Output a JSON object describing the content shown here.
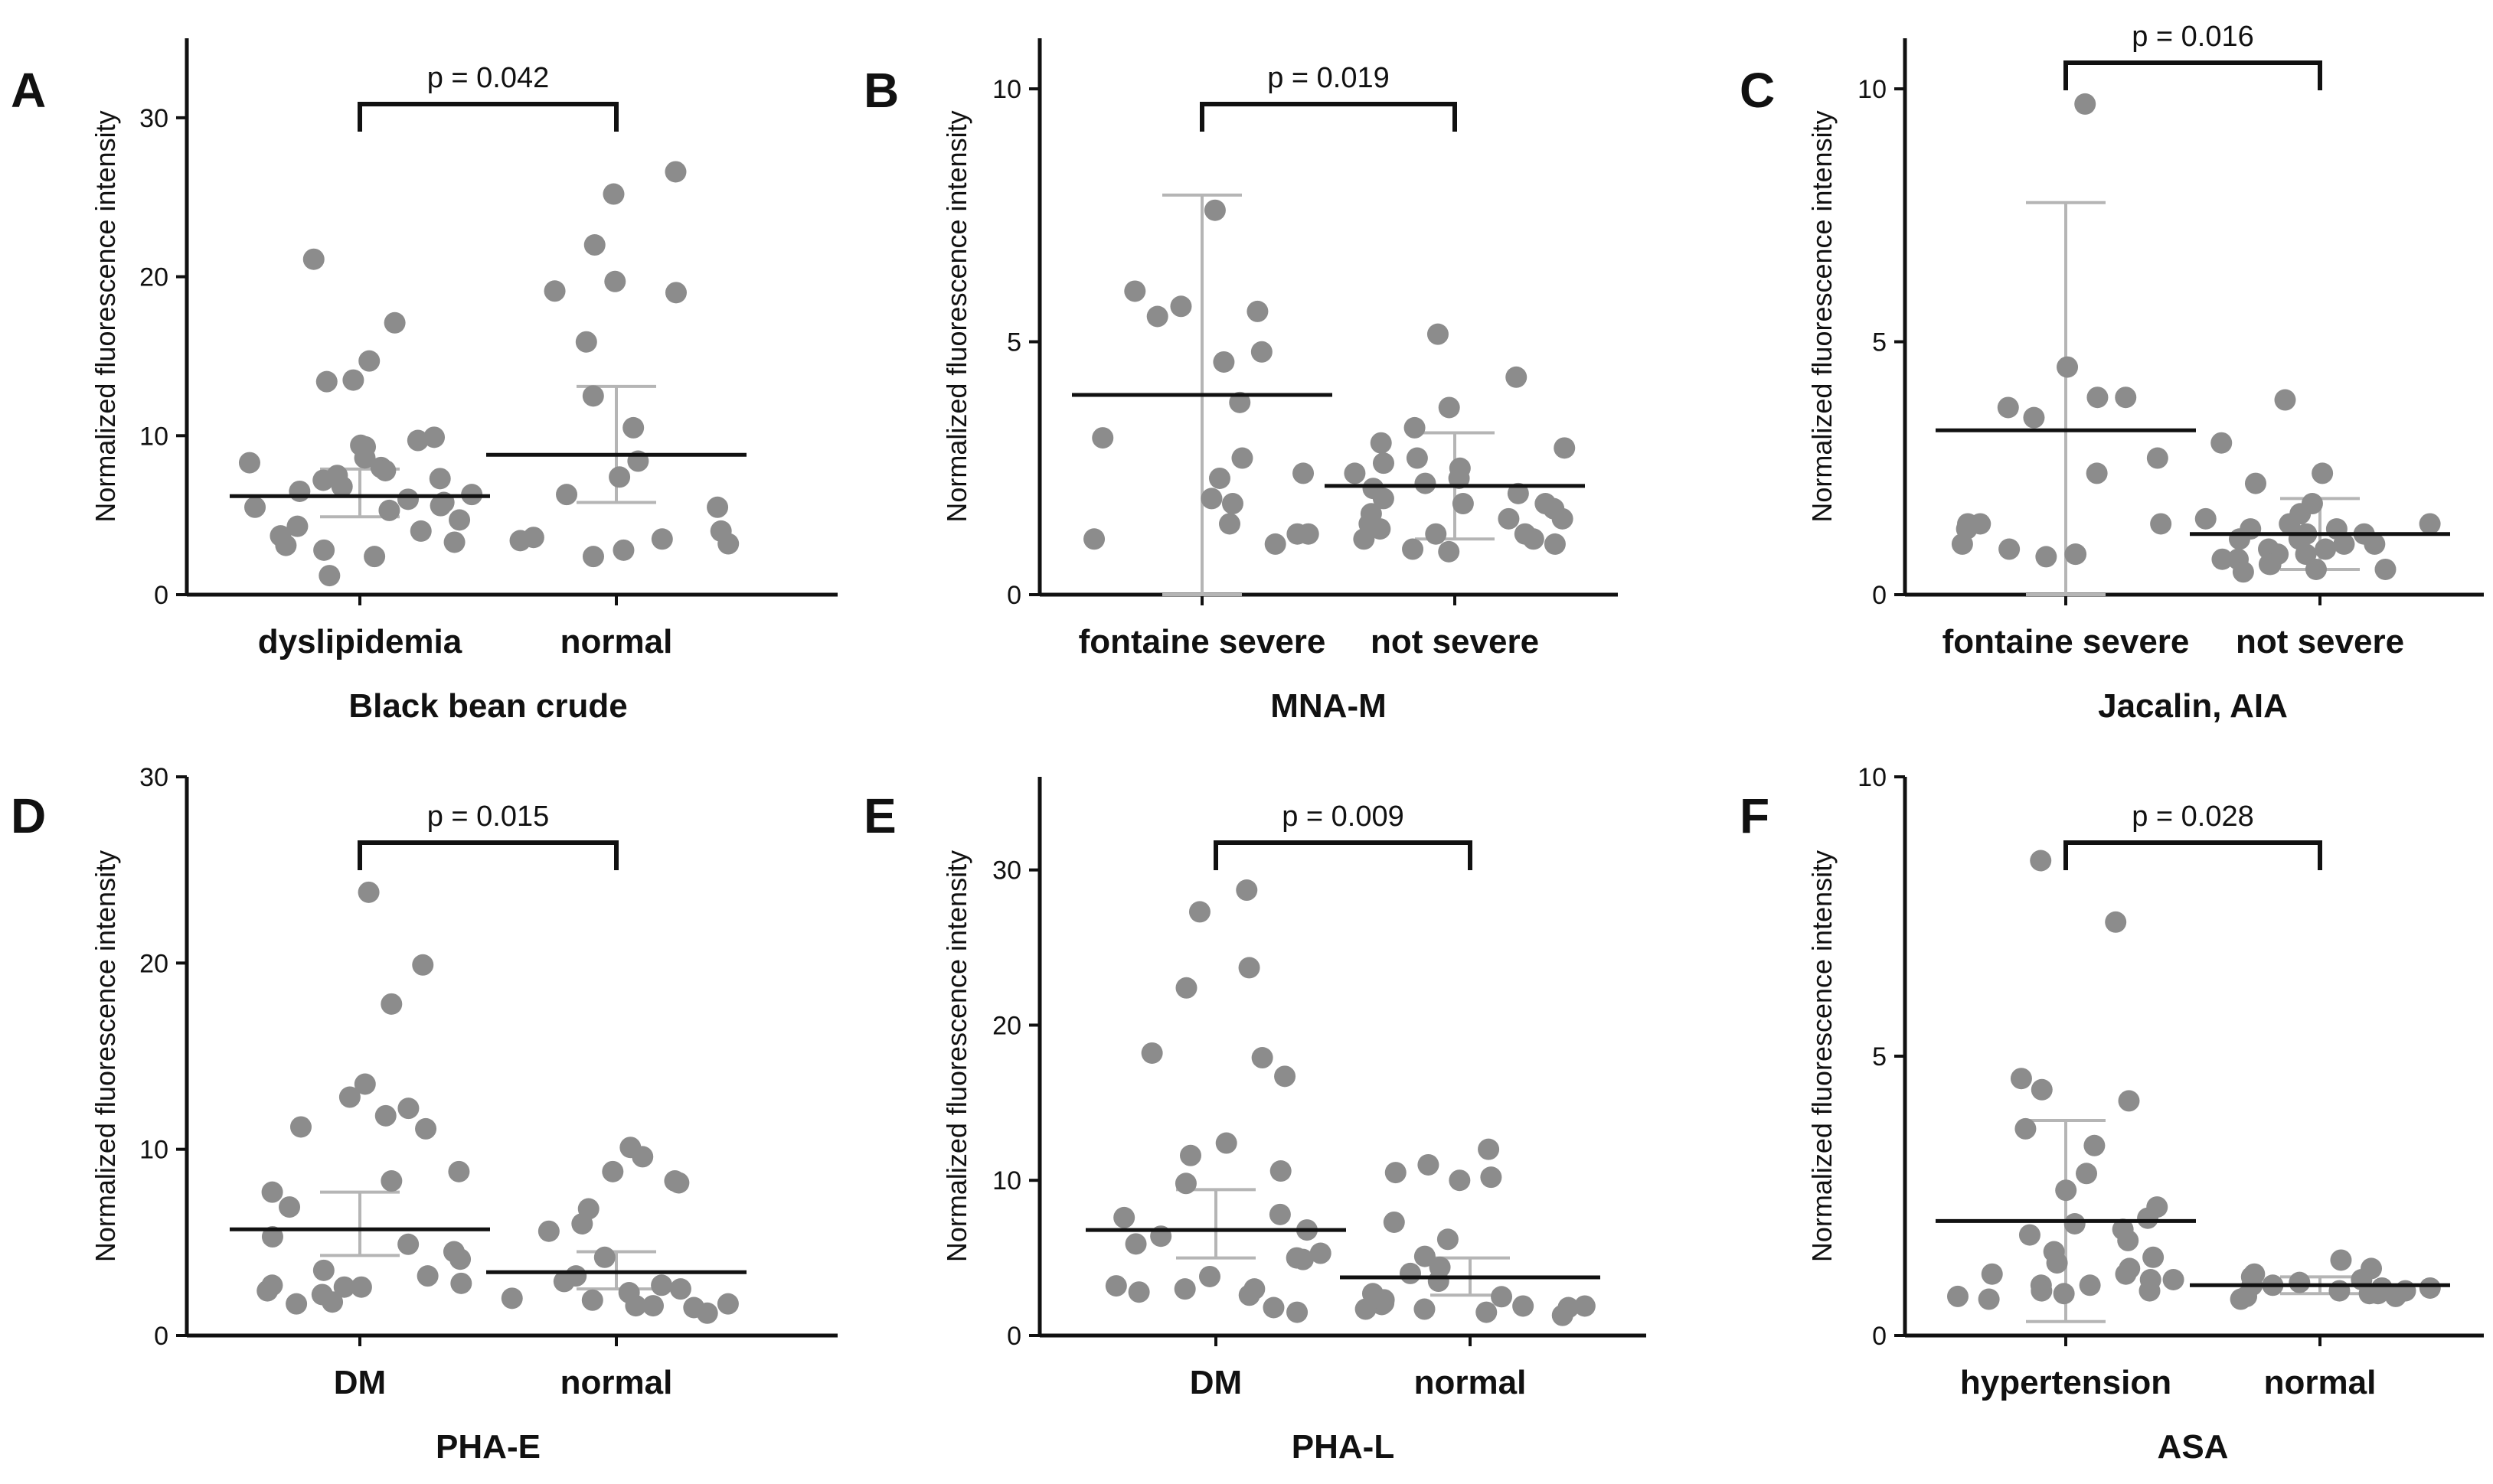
{
  "chart_data": [
    {
      "panel": "A",
      "type": "scatter",
      "xlabel": "Black bean crude",
      "ylabel": "Normalized fluorescence intensity",
      "ylim": [
        0,
        35
      ],
      "yticks": [
        0,
        10,
        20,
        30
      ],
      "categories": [
        "dyslipidemia",
        "normal"
      ],
      "p_value": "p = 0.042",
      "groups": [
        {
          "name": "dyslipidemia",
          "mean": 6.2,
          "err_low": 4.9,
          "err_high": 7.9,
          "values": [
            21.1,
            17.1,
            14.7,
            13.5,
            13.4,
            9.9,
            9.7,
            9.4,
            9.3,
            8.6,
            8.3,
            8.0,
            7.8,
            7.5,
            7.3,
            7.2,
            6.8,
            6.5,
            6.3,
            6.0,
            5.8,
            5.6,
            5.5,
            5.3,
            4.7,
            4.3,
            4.0,
            3.7,
            3.3,
            3.1,
            2.8,
            2.4,
            1.2
          ]
        },
        {
          "name": "normal",
          "mean": 8.8,
          "err_low": 5.8,
          "err_high": 13.1,
          "values": [
            26.6,
            25.2,
            22.0,
            19.7,
            19.1,
            19.0,
            15.9,
            12.5,
            10.5,
            8.4,
            7.4,
            6.3,
            5.5,
            4.0,
            3.6,
            3.5,
            3.4,
            3.2,
            2.8,
            2.4
          ]
        }
      ]
    },
    {
      "panel": "B",
      "type": "scatter",
      "xlabel": "MNA-M",
      "ylabel": "Normalized fluorescence intensity",
      "ylim": [
        0,
        11
      ],
      "yticks": [
        0,
        5,
        10
      ],
      "categories": [
        "fontaine severe",
        "not severe"
      ],
      "p_value": "p = 0.019",
      "groups": [
        {
          "name": "fontaine severe",
          "mean": 3.95,
          "err_low": 0.0,
          "err_high": 7.9,
          "values": [
            7.6,
            6.0,
            5.7,
            5.6,
            5.5,
            4.8,
            4.6,
            3.8,
            3.1,
            2.7,
            2.4,
            2.3,
            1.9,
            1.8,
            1.4,
            1.2,
            1.2,
            1.1,
            1.0
          ]
        },
        {
          "name": "not severe",
          "mean": 2.15,
          "err_low": 1.1,
          "err_high": 3.2,
          "values": [
            5.15,
            4.3,
            3.7,
            3.3,
            3.0,
            2.9,
            2.7,
            2.6,
            2.5,
            2.4,
            2.3,
            2.2,
            2.1,
            2.0,
            1.9,
            1.8,
            1.8,
            1.7,
            1.6,
            1.5,
            1.5,
            1.4,
            1.3,
            1.2,
            1.2,
            1.1,
            1.1,
            1.0,
            0.9,
            0.85
          ]
        }
      ]
    },
    {
      "panel": "C",
      "type": "scatter",
      "xlabel": "Jacalin, AIA",
      "ylabel": "Normalized fluorescence intensity",
      "ylim": [
        0,
        11
      ],
      "yticks": [
        0,
        5,
        10
      ],
      "categories": [
        "fontaine severe",
        "not severe"
      ],
      "p_value": "p = 0.016",
      "groups": [
        {
          "name": "fontaine severe",
          "mean": 3.25,
          "err_low": 0.0,
          "err_high": 7.75,
          "values": [
            9.7,
            4.5,
            3.9,
            3.9,
            3.7,
            3.5,
            2.7,
            2.4,
            1.4,
            1.4,
            1.4,
            1.3,
            1.0,
            0.9,
            0.8,
            0.8,
            0.75
          ]
        },
        {
          "name": "not severe",
          "mean": 1.2,
          "err_low": 0.5,
          "err_high": 1.9,
          "values": [
            3.85,
            3.0,
            2.4,
            2.2,
            1.8,
            1.6,
            1.5,
            1.4,
            1.4,
            1.3,
            1.3,
            1.2,
            1.2,
            1.1,
            1.1,
            1.0,
            1.0,
            0.9,
            0.9,
            0.8,
            0.8,
            0.7,
            0.7,
            0.6,
            0.6,
            0.5,
            0.5,
            0.45
          ]
        }
      ]
    },
    {
      "panel": "D",
      "type": "scatter",
      "xlabel": "PHA-E",
      "ylabel": "Normalized fluorescence intensity",
      "ylim": [
        0,
        30
      ],
      "yticks": [
        0,
        10,
        20,
        30
      ],
      "categories": [
        "DM",
        "normal"
      ],
      "p_value": "p = 0.015",
      "groups": [
        {
          "name": "DM",
          "mean": 5.7,
          "err_low": 4.3,
          "err_high": 7.7,
          "values": [
            23.8,
            19.9,
            17.8,
            13.5,
            12.8,
            12.2,
            11.8,
            11.2,
            11.1,
            8.8,
            8.3,
            7.7,
            6.9,
            5.3,
            4.9,
            4.5,
            4.1,
            3.5,
            3.2,
            2.8,
            2.7,
            2.6,
            2.6,
            2.4,
            2.2,
            1.8,
            1.7
          ]
        },
        {
          "name": "normal",
          "mean": 3.4,
          "err_low": 2.5,
          "err_high": 4.5,
          "values": [
            10.1,
            9.6,
            8.8,
            8.3,
            8.2,
            6.8,
            6.0,
            5.6,
            4.2,
            3.2,
            2.9,
            2.7,
            2.5,
            2.3,
            2.0,
            1.9,
            1.7,
            1.6,
            1.6,
            1.5,
            1.2
          ]
        }
      ]
    },
    {
      "panel": "E",
      "type": "scatter",
      "xlabel": "PHA-L",
      "ylabel": "Normalized fluorescence intensity",
      "ylim": [
        0,
        36
      ],
      "yticks": [
        0,
        10,
        20,
        30
      ],
      "categories": [
        "DM",
        "normal"
      ],
      "p_value": "p = 0.009",
      "groups": [
        {
          "name": "DM",
          "mean": 6.8,
          "err_low": 5.0,
          "err_high": 9.4,
          "values": [
            28.7,
            27.3,
            23.7,
            22.4,
            18.2,
            17.9,
            16.7,
            12.4,
            11.6,
            10.6,
            9.8,
            7.8,
            7.6,
            6.8,
            6.4,
            5.9,
            5.3,
            5.0,
            4.9,
            3.8,
            3.2,
            3.0,
            3.0,
            2.8,
            2.6,
            1.8,
            1.5
          ]
        },
        {
          "name": "normal",
          "mean": 3.75,
          "err_low": 2.6,
          "err_high": 5.0,
          "values": [
            12.0,
            11.0,
            10.5,
            10.2,
            10.0,
            7.3,
            6.2,
            5.1,
            4.4,
            4.0,
            3.5,
            2.7,
            2.5,
            2.3,
            2.1,
            2.0,
            1.9,
            1.9,
            1.8,
            1.7,
            1.7,
            1.5,
            1.3
          ]
        }
      ]
    },
    {
      "panel": "F",
      "type": "scatter",
      "xlabel": "ASA",
      "ylabel": "Normalized fluorescence intensity",
      "ylim": [
        0,
        10
      ],
      "yticks": [
        0,
        5,
        10
      ],
      "categories": [
        "hypertension",
        "normal"
      ],
      "p_value": "p = 0.028",
      "groups": [
        {
          "name": "hypertension",
          "mean": 2.05,
          "err_low": 0.25,
          "err_high": 3.85,
          "values": [
            8.5,
            7.4,
            4.6,
            4.4,
            4.2,
            3.7,
            3.4,
            2.9,
            2.6,
            2.3,
            2.1,
            2.0,
            1.9,
            1.8,
            1.7,
            1.5,
            1.4,
            1.3,
            1.2,
            1.1,
            1.1,
            1.0,
            1.0,
            0.9,
            0.9,
            0.8,
            0.8,
            0.75,
            0.7,
            0.65
          ]
        },
        {
          "name": "normal",
          "mean": 0.9,
          "err_low": 0.75,
          "err_high": 1.05,
          "values": [
            1.35,
            1.2,
            1.1,
            1.05,
            1.0,
            0.95,
            0.9,
            0.9,
            0.85,
            0.85,
            0.8,
            0.8,
            0.75,
            0.75,
            0.7,
            0.7,
            0.65
          ]
        }
      ]
    }
  ],
  "colors": {
    "point": "#8c8c8c",
    "errorbar": "#b5b5b5",
    "mean": "#111111",
    "axis": "#111111"
  }
}
